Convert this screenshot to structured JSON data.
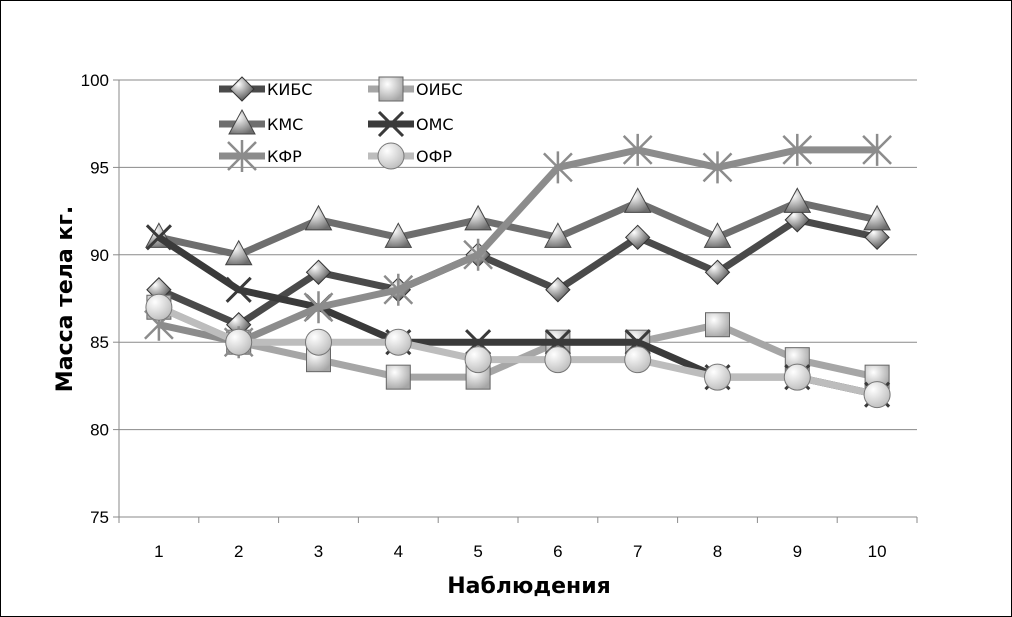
{
  "chart_data": {
    "type": "line",
    "xlabel": "Наблюдения",
    "ylabel": "Масса тела кг.",
    "categories": [
      "1",
      "2",
      "3",
      "4",
      "5",
      "6",
      "7",
      "8",
      "9",
      "10"
    ],
    "ylim": [
      75,
      100
    ],
    "yticks": [
      "75",
      "80",
      "85",
      "90",
      "95",
      "100"
    ],
    "grid": true,
    "legend_position": "top-left",
    "series": [
      {
        "name": "КИБС",
        "marker": "diamond",
        "color": "#4a4a4a",
        "values": [
          88,
          86,
          89,
          88,
          90,
          88,
          91,
          89,
          92,
          91
        ]
      },
      {
        "name": "ОИБС",
        "marker": "square",
        "color": "#a6a6a6",
        "values": [
          87,
          85,
          84,
          83,
          83,
          85,
          85,
          86,
          84,
          83
        ]
      },
      {
        "name": "КМС",
        "marker": "triangle",
        "color": "#6e6e6e",
        "values": [
          91,
          90,
          92,
          91,
          92,
          91,
          93,
          91,
          93,
          92
        ]
      },
      {
        "name": "ОМС",
        "marker": "x",
        "color": "#3a3a3a",
        "values": [
          91,
          88,
          87,
          85,
          85,
          85,
          85,
          83,
          83,
          82
        ]
      },
      {
        "name": "КФР",
        "marker": "star",
        "color": "#8c8c8c",
        "values": [
          86,
          85,
          87,
          88,
          90,
          95,
          96,
          95,
          96,
          96
        ]
      },
      {
        "name": "ОФР",
        "marker": "circle",
        "color": "#bdbdbd",
        "values": [
          87,
          85,
          85,
          85,
          84,
          84,
          84,
          83,
          83,
          82
        ]
      }
    ]
  }
}
